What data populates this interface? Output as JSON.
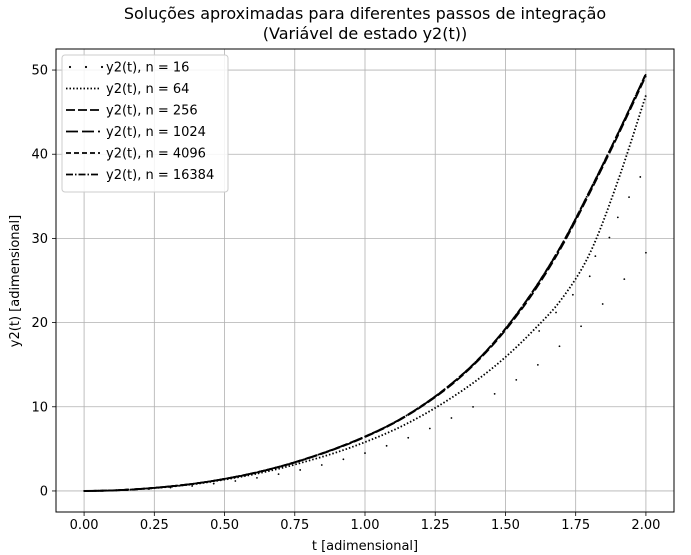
{
  "chart_data": {
    "type": "line",
    "title": "Soluções aproximadas para diferentes passos de integração",
    "subtitle": "(Variável de estado y2(t))",
    "xlabel": "t [adimensional]",
    "ylabel": "y2(t) [adimensional]",
    "xlim": [
      -0.1,
      2.1
    ],
    "ylim": [
      -2.5,
      52.5
    ],
    "xticks": [
      0.0,
      0.25,
      0.5,
      0.75,
      1.0,
      1.25,
      1.5,
      1.75,
      2.0
    ],
    "xtick_labels": [
      "0.00",
      "0.25",
      "0.50",
      "0.75",
      "1.00",
      "1.25",
      "1.50",
      "1.75",
      "2.00"
    ],
    "yticks": [
      0,
      10,
      20,
      30,
      40,
      50
    ],
    "ytick_labels": [
      "0",
      "10",
      "20",
      "30",
      "40",
      "50"
    ],
    "grid": true,
    "legend_position": "top-left",
    "line_color": "#000000",
    "series": [
      {
        "name": "y2(t), n = 16",
        "style": "dots",
        "x": [
          0,
          0.125,
          0.25,
          0.375,
          0.5,
          0.625,
          0.75,
          0.875,
          1.0,
          1.125,
          1.25,
          1.375,
          1.5,
          1.625,
          1.75,
          1.875,
          2.0
        ],
        "y": [
          0,
          0.05,
          0.25,
          0.56,
          1.0,
          1.6,
          2.35,
          3.3,
          4.5,
          5.9,
          7.7,
          9.8,
          12.3,
          15.2,
          18.9,
          23.2,
          28.3
        ],
        "points": [
          [
            0.0,
            0.0
          ],
          [
            0.078,
            0.02
          ],
          [
            0.157,
            0.1
          ],
          [
            0.235,
            0.23
          ],
          [
            0.313,
            0.42
          ],
          [
            0.392,
            0.68
          ],
          [
            0.47,
            0.98
          ],
          [
            0.548,
            1.3
          ],
          [
            0.627,
            1.65
          ],
          [
            0.705,
            2.1
          ],
          [
            0.783,
            2.65
          ],
          [
            0.862,
            3.3
          ],
          [
            0.94,
            4.05
          ],
          [
            1.018,
            4.95
          ],
          [
            1.097,
            6.0
          ],
          [
            1.175,
            7.2
          ],
          [
            1.253,
            8.5
          ],
          [
            1.332,
            10.0
          ],
          [
            1.41,
            11.6
          ],
          [
            1.488,
            13.3
          ],
          [
            1.567,
            15.1
          ],
          [
            1.645,
            17.0
          ],
          [
            1.723,
            19.0
          ],
          [
            1.802,
            21.2
          ],
          [
            1.88,
            23.4
          ],
          [
            1.958,
            25.6
          ],
          [
            1.62,
            17.1
          ],
          [
            1.68,
            21.2
          ],
          [
            1.73,
            23.3
          ],
          [
            1.79,
            25.5
          ],
          [
            1.82,
            27.9
          ],
          [
            1.86,
            30.1
          ],
          [
            1.9,
            32.5
          ],
          [
            1.94,
            34.9
          ],
          [
            1.98,
            37.3
          ]
        ]
      },
      {
        "name": "y2(t), n = 64",
        "style": "dotted",
        "x": [
          0,
          0.1,
          0.2,
          0.3,
          0.4,
          0.5,
          0.6,
          0.7,
          0.8,
          0.9,
          1.0,
          1.1,
          1.2,
          1.3,
          1.4,
          1.5,
          1.6,
          1.7,
          1.8,
          1.9,
          2.0
        ],
        "y": [
          0,
          0.06,
          0.22,
          0.48,
          0.85,
          1.35,
          1.95,
          2.7,
          3.6,
          4.6,
          5.8,
          7.2,
          8.9,
          10.9,
          13.2,
          15.9,
          19.1,
          22.8,
          28.2,
          36.8,
          47.0
        ]
      },
      {
        "name": "y2(t), n = 256",
        "style": "dashed",
        "x": [
          0,
          0.1,
          0.2,
          0.3,
          0.4,
          0.5,
          0.6,
          0.7,
          0.8,
          0.9,
          1.0,
          1.1,
          1.2,
          1.3,
          1.4,
          1.5,
          1.6,
          1.7,
          1.8,
          1.9,
          2.0
        ],
        "y": [
          0,
          0.06,
          0.24,
          0.52,
          0.9,
          1.42,
          2.08,
          2.9,
          3.9,
          5.05,
          6.4,
          8.0,
          10.0,
          12.4,
          15.4,
          19.1,
          23.6,
          29.0,
          35.4,
          42.2,
          49.3
        ]
      },
      {
        "name": "y2(t), n = 1024",
        "style": "long-dashed",
        "x": [
          0,
          0.1,
          0.2,
          0.3,
          0.4,
          0.5,
          0.6,
          0.7,
          0.8,
          0.9,
          1.0,
          1.1,
          1.2,
          1.3,
          1.4,
          1.5,
          1.6,
          1.7,
          1.8,
          1.9,
          2.0
        ],
        "y": [
          0,
          0.06,
          0.24,
          0.52,
          0.9,
          1.43,
          2.1,
          2.92,
          3.93,
          5.1,
          6.45,
          8.05,
          10.05,
          12.5,
          15.5,
          19.25,
          23.8,
          29.2,
          35.6,
          42.4,
          49.5
        ]
      },
      {
        "name": "y2(t), n = 4096",
        "style": "short-dashed",
        "x": [
          0,
          0.1,
          0.2,
          0.3,
          0.4,
          0.5,
          0.6,
          0.7,
          0.8,
          0.9,
          1.0,
          1.1,
          1.2,
          1.3,
          1.4,
          1.5,
          1.6,
          1.7,
          1.8,
          1.9,
          2.0
        ],
        "y": [
          0,
          0.06,
          0.24,
          0.52,
          0.9,
          1.43,
          2.1,
          2.93,
          3.94,
          5.1,
          6.46,
          8.06,
          10.07,
          12.52,
          15.52,
          19.28,
          23.84,
          29.24,
          35.64,
          42.44,
          49.55
        ]
      },
      {
        "name": "y2(t), n = 16384",
        "style": "dash-dot",
        "x": [
          0,
          0.1,
          0.2,
          0.3,
          0.4,
          0.5,
          0.6,
          0.7,
          0.8,
          0.9,
          1.0,
          1.1,
          1.2,
          1.3,
          1.4,
          1.5,
          1.6,
          1.7,
          1.8,
          1.9,
          2.0
        ],
        "y": [
          0,
          0.06,
          0.24,
          0.52,
          0.9,
          1.43,
          2.1,
          2.93,
          3.94,
          5.1,
          6.46,
          8.06,
          10.07,
          12.52,
          15.52,
          19.28,
          23.84,
          29.24,
          35.64,
          42.44,
          49.55
        ]
      }
    ]
  }
}
